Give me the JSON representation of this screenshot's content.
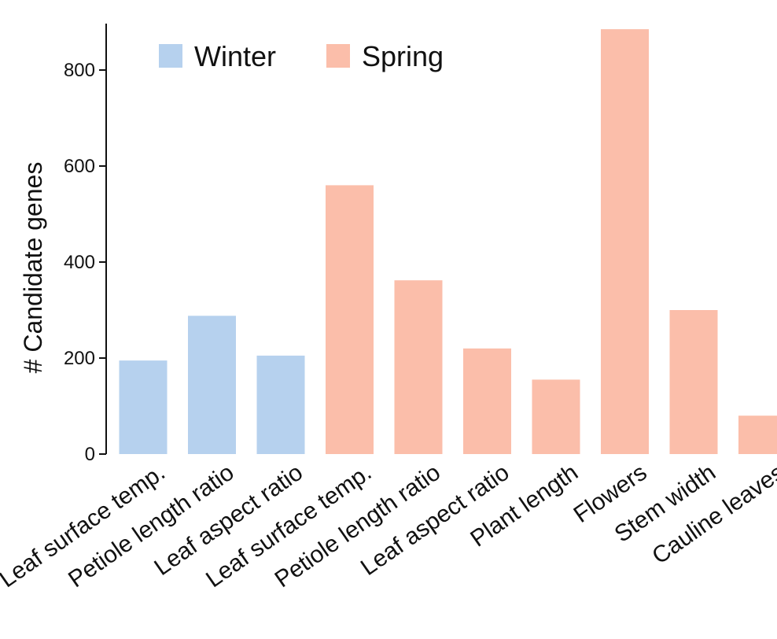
{
  "chart_data": {
    "type": "bar",
    "title": "",
    "xlabel": "",
    "ylabel": "# Candidate genes",
    "ylim": [
      0,
      900
    ],
    "yticks": [
      0,
      200,
      400,
      600,
      800
    ],
    "grid": false,
    "legend_position": "top-left",
    "categories": [
      "Leaf surface temp.",
      "Petiole length ratio",
      "Leaf aspect ratio",
      "Leaf surface temp.",
      "Petiole length ratio",
      "Leaf aspect ratio",
      "Plant length",
      "Flowers",
      "Stem width",
      "Cauline leaves"
    ],
    "values": [
      195,
      288,
      205,
      560,
      362,
      220,
      155,
      885,
      300,
      80
    ],
    "groups": [
      "Winter",
      "Winter",
      "Winter",
      "Spring",
      "Spring",
      "Spring",
      "Spring",
      "Spring",
      "Spring",
      "Spring"
    ],
    "series": [
      {
        "name": "Winter",
        "color": "#b6d1ee"
      },
      {
        "name": "Spring",
        "color": "#fbbeaa"
      }
    ]
  }
}
